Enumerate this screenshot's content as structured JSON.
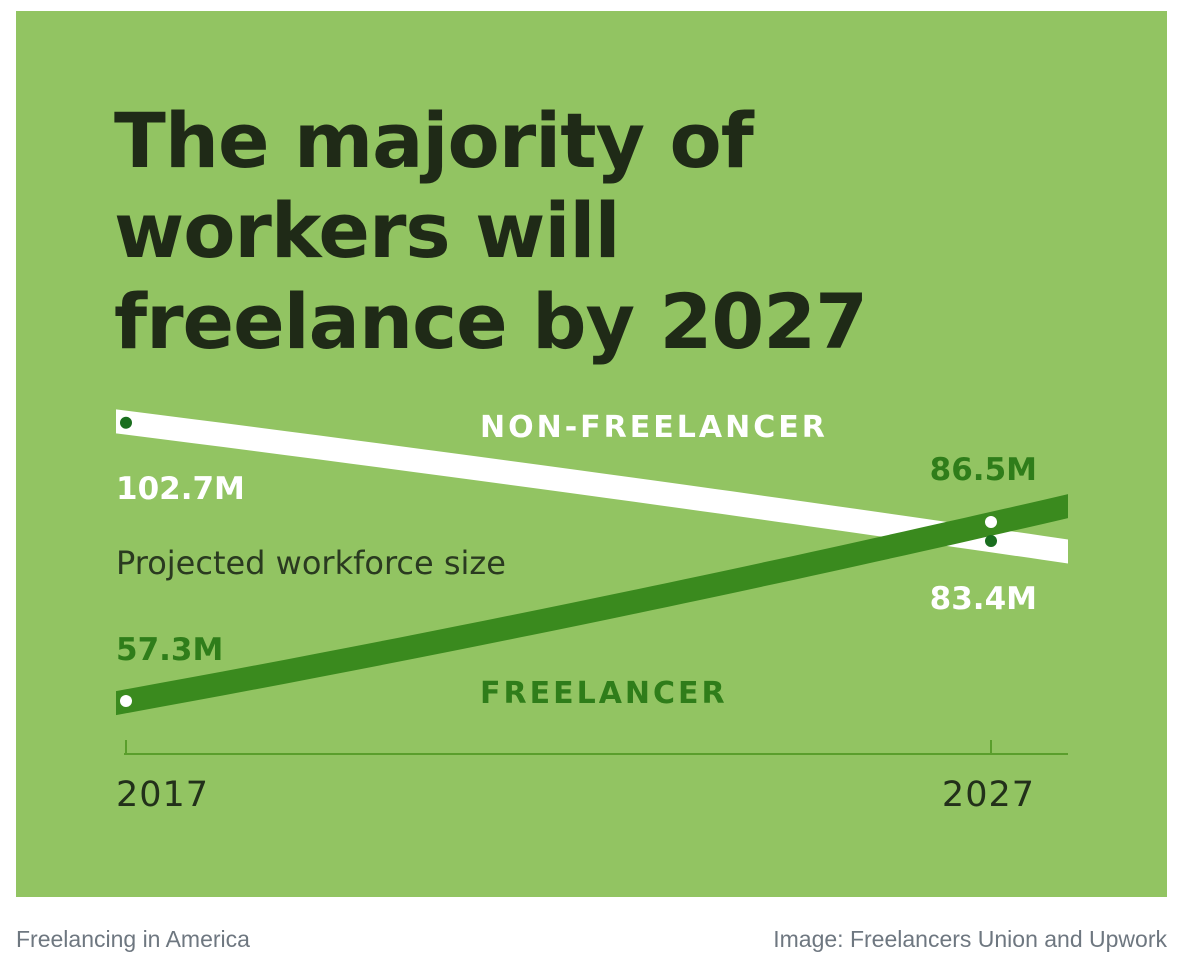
{
  "chart_data": {
    "type": "line",
    "title_lines": [
      "The majority of",
      "workers will",
      "freelance by 2027"
    ],
    "subtitle": "Projected workforce size",
    "x": [
      "2017",
      "2027"
    ],
    "series": [
      {
        "name": "NON-FREELANCER",
        "values": [
          102.7,
          83.4
        ],
        "labels": [
          "102.7M",
          "83.4M"
        ],
        "color": "#ffffff"
      },
      {
        "name": "FREELANCER",
        "values": [
          57.3,
          86.5
        ],
        "labels": [
          "57.3M",
          "86.5M"
        ],
        "color": "#3a8a1e"
      }
    ],
    "unit": "M",
    "colors": {
      "background": "#92c462",
      "title": "#1f2a17",
      "dot_dark": "#1a6e1f",
      "dot_light": "#ffffff",
      "axis": "#5a9e2c"
    }
  },
  "footer": {
    "caption_left": "Freelancing in America",
    "caption_right": "Image: Freelancers Union and Upwork"
  }
}
